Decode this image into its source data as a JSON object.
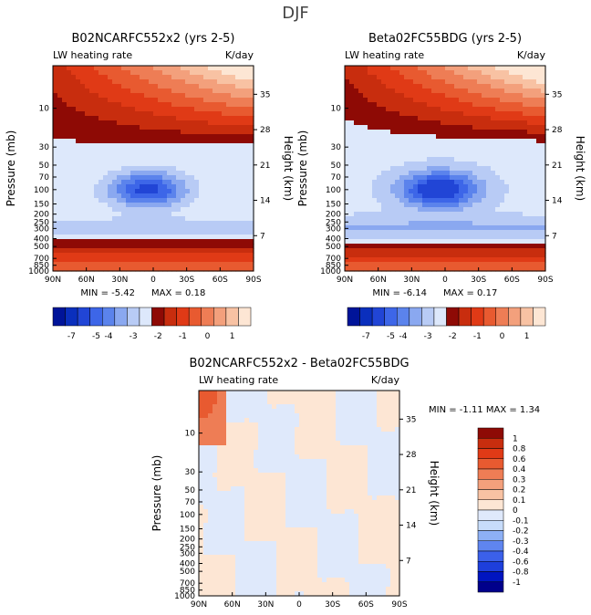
{
  "figure_title": "DJF",
  "colors": {
    "blue_scale": [
      "#001499",
      "#0a2fbd",
      "#2145d6",
      "#3d66e8",
      "#5b83ec",
      "#8aa8f0",
      "#b8cbf5",
      "#dde8fb"
    ],
    "red_scale": [
      "#fde6d4",
      "#f8c2a3",
      "#f3a07c",
      "#ee7d55",
      "#e85a30",
      "#e03a16",
      "#c82d0e",
      "#8e0a05"
    ],
    "diff_scale": [
      "#00008b",
      "#0015c0",
      "#1e3fdc",
      "#3b60ea",
      "#5f85f0",
      "#8db0f5",
      "#c7dcfa",
      "#dfe9fb",
      "#fde6d4",
      "#f8c2a3",
      "#f3a07c",
      "#ee7d55",
      "#e85a30",
      "#e03a16",
      "#c82d0e",
      "#8e0a05"
    ]
  },
  "chart_data": [
    {
      "type": "heatmap",
      "title": "B02NCARFC552x2 (yrs 2-5)",
      "subtitle_left": "LW heating rate",
      "subtitle_right": "K/day",
      "xlabel": "",
      "ylabel": "Pressure (mb)",
      "ylabel_right": "Height (km)",
      "x_ticks": [
        "90N",
        "60N",
        "30N",
        "0",
        "30S",
        "60S",
        "90S"
      ],
      "x_values": [
        90,
        60,
        30,
        0,
        -30,
        -60,
        -90
      ],
      "y_ticks": [
        "10",
        "30",
        "50",
        "70",
        "100",
        "150",
        "200",
        "250",
        "300",
        "400",
        "500",
        "700",
        "850",
        "1000"
      ],
      "y_values": [
        10,
        30,
        50,
        70,
        100,
        150,
        200,
        250,
        300,
        400,
        500,
        700,
        850,
        1000
      ],
      "height_ticks": [
        "35",
        "28",
        "21",
        "14",
        "7"
      ],
      "height_values": [
        35,
        28,
        21,
        14,
        7
      ],
      "stats_label_min": "MIN =",
      "min": "-5.42",
      "stats_label_max": "MAX =",
      "max": "0.18",
      "legend_labels": [
        "-7",
        "-5",
        "-4",
        "-3",
        "-2",
        "-1",
        "0",
        "1"
      ]
    },
    {
      "type": "heatmap",
      "title": "Beta02FC55BDG (yrs 2-5)",
      "subtitle_left": "LW heating rate",
      "subtitle_right": "K/day",
      "xlabel": "",
      "ylabel": "Pressure (mb)",
      "ylabel_right": "Height (km)",
      "x_ticks": [
        "90N",
        "60N",
        "30N",
        "0",
        "30S",
        "60S",
        "90S"
      ],
      "x_values": [
        90,
        60,
        30,
        0,
        -30,
        -60,
        -90
      ],
      "y_ticks": [
        "10",
        "30",
        "50",
        "70",
        "100",
        "150",
        "200",
        "250",
        "300",
        "400",
        "500",
        "700",
        "850",
        "1000"
      ],
      "y_values": [
        10,
        30,
        50,
        70,
        100,
        150,
        200,
        250,
        300,
        400,
        500,
        700,
        850,
        1000
      ],
      "height_ticks": [
        "35",
        "28",
        "21",
        "14",
        "7"
      ],
      "height_values": [
        35,
        28,
        21,
        14,
        7
      ],
      "stats_label_min": "MIN =",
      "min": "-6.14",
      "stats_label_max": "MAX =",
      "max": "0.17",
      "legend_labels": [
        "-7",
        "-5",
        "-4",
        "-3",
        "-2",
        "-1",
        "0",
        "1"
      ]
    },
    {
      "type": "heatmap",
      "title": "B02NCARFC552x2 - Beta02FC55BDG",
      "subtitle_left": "LW heating rate",
      "subtitle_right": "K/day",
      "xlabel": "",
      "ylabel": "Pressure (mb)",
      "ylabel_right": "Height (km)",
      "x_ticks": [
        "90N",
        "60N",
        "30N",
        "0",
        "30S",
        "60S",
        "90S"
      ],
      "x_values": [
        90,
        60,
        30,
        0,
        -30,
        -60,
        -90
      ],
      "y_ticks": [
        "10",
        "30",
        "50",
        "70",
        "100",
        "150",
        "200",
        "250",
        "300",
        "400",
        "500",
        "700",
        "850",
        "1000"
      ],
      "y_values": [
        10,
        30,
        50,
        70,
        100,
        150,
        200,
        250,
        300,
        400,
        500,
        700,
        850,
        1000
      ],
      "height_ticks": [
        "35",
        "28",
        "21",
        "14",
        "7"
      ],
      "height_values": [
        35,
        28,
        21,
        14,
        7
      ],
      "stats_label_min": "MIN =",
      "min": "-1.11",
      "stats_label_max": "MAX =",
      "max": "1.34",
      "legend_labels": [
        "1",
        "0.8",
        "0.6",
        "0.4",
        "0.3",
        "0.2",
        "0.1",
        "0",
        "-0.1",
        "-0.2",
        "-0.3",
        "-0.4",
        "-0.6",
        "-0.8",
        "-1"
      ]
    }
  ]
}
